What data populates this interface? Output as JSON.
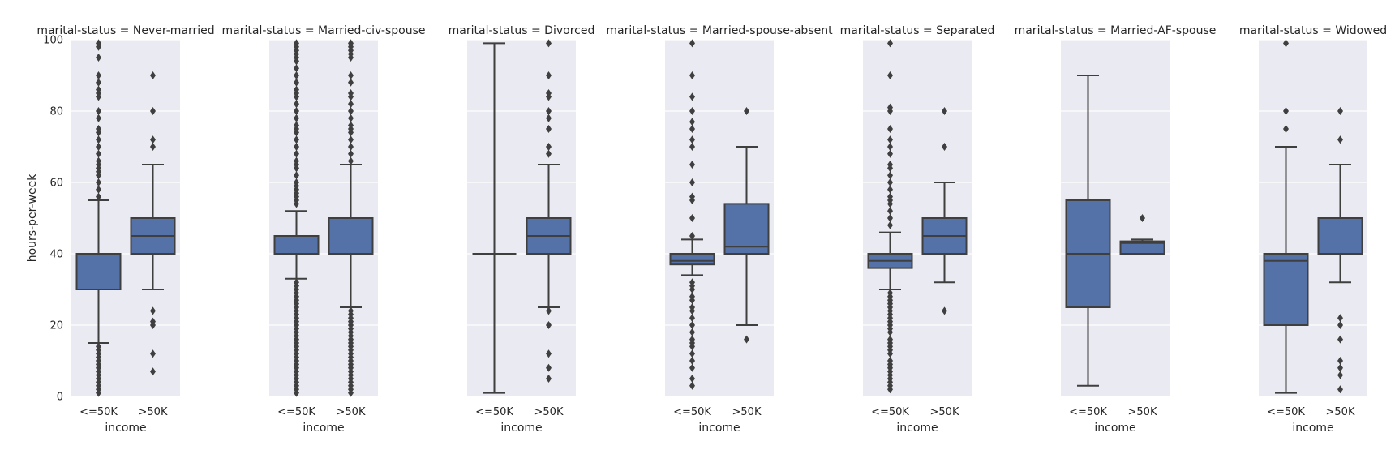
{
  "chart_data": {
    "type": "box",
    "facet_label": "marital-status = ",
    "xlabel": "income",
    "ylabel": "hours-per-week",
    "ylim": [
      0,
      100
    ],
    "yticks": [
      0,
      20,
      40,
      60,
      80,
      100
    ],
    "categories": [
      "<=50K",
      ">50K"
    ],
    "box_color": "#5572a8",
    "panels": [
      {
        "title": "marital-status =  Never-married",
        "boxes": [
          {
            "category": "<=50K",
            "whislo": 15,
            "q1": 30,
            "med": 40,
            "q3": 40,
            "whishi": 55,
            "fliers": [
              1,
              2,
              3,
              4,
              5,
              6,
              7,
              8,
              9,
              10,
              11,
              12,
              13,
              14,
              56,
              58,
              60,
              62,
              63,
              64,
              65,
              66,
              68,
              70,
              72,
              74,
              75,
              78,
              80,
              84,
              85,
              86,
              88,
              90,
              95,
              98,
              99
            ]
          },
          {
            "category": ">50K",
            "whislo": 30,
            "q1": 40,
            "med": 45,
            "q3": 50,
            "whishi": 65,
            "fliers": [
              7,
              12,
              20,
              21,
              24,
              70,
              72,
              80,
              90
            ]
          }
        ]
      },
      {
        "title": "marital-status =  Married-civ-spouse",
        "boxes": [
          {
            "category": "<=50K",
            "whislo": 33,
            "q1": 40,
            "med": 40,
            "q3": 45,
            "whishi": 52,
            "fliers": [
              1,
              2,
              3,
              4,
              5,
              6,
              7,
              8,
              9,
              10,
              11,
              12,
              13,
              14,
              15,
              16,
              17,
              18,
              19,
              20,
              21,
              22,
              23,
              24,
              25,
              26,
              27,
              28,
              29,
              30,
              31,
              32,
              54,
              55,
              56,
              57,
              58,
              59,
              60,
              62,
              64,
              65,
              66,
              68,
              70,
              72,
              74,
              75,
              76,
              78,
              80,
              82,
              84,
              85,
              86,
              88,
              90,
              92,
              94,
              95,
              96,
              97,
              98,
              99
            ]
          },
          {
            "category": ">50K",
            "whislo": 25,
            "q1": 40,
            "med": 40,
            "q3": 50,
            "whishi": 65,
            "fliers": [
              1,
              2,
              3,
              4,
              5,
              6,
              7,
              8,
              9,
              10,
              11,
              12,
              13,
              14,
              15,
              16,
              17,
              18,
              19,
              20,
              21,
              22,
              23,
              24,
              66,
              68,
              70,
              72,
              74,
              75,
              76,
              78,
              80,
              82,
              84,
              85,
              88,
              90,
              95,
              96,
              97,
              98,
              99
            ]
          }
        ]
      },
      {
        "title": "marital-status =  Divorced",
        "boxes": [
          {
            "category": "<=50K",
            "whislo": 1,
            "q1": 40,
            "med": 40,
            "q3": 40,
            "whishi": 99,
            "fliers": []
          },
          {
            "category": ">50K",
            "whislo": 25,
            "q1": 40,
            "med": 45,
            "q3": 50,
            "whishi": 65,
            "fliers": [
              5,
              8,
              12,
              20,
              24,
              68,
              70,
              75,
              78,
              80,
              84,
              85,
              90,
              99
            ]
          }
        ]
      },
      {
        "title": "marital-status =  Married-spouse-absent",
        "boxes": [
          {
            "category": "<=50K",
            "whislo": 34,
            "q1": 37,
            "med": 38,
            "q3": 40,
            "whishi": 44,
            "fliers": [
              3,
              5,
              8,
              10,
              12,
              14,
              15,
              16,
              18,
              20,
              22,
              24,
              25,
              27,
              28,
              30,
              31,
              32,
              45,
              50,
              55,
              56,
              60,
              65,
              70,
              72,
              75,
              77,
              80,
              84,
              90,
              99
            ]
          },
          {
            "category": ">50K",
            "whislo": 20,
            "q1": 40,
            "med": 42,
            "q3": 54,
            "whishi": 70,
            "fliers": [
              16,
              80
            ]
          }
        ]
      },
      {
        "title": "marital-status =  Separated",
        "boxes": [
          {
            "category": "<=50K",
            "whislo": 30,
            "q1": 36,
            "med": 38,
            "q3": 40,
            "whishi": 46,
            "fliers": [
              2,
              3,
              4,
              5,
              6,
              7,
              8,
              9,
              10,
              12,
              13,
              14,
              15,
              16,
              18,
              19,
              20,
              21,
              22,
              23,
              24,
              25,
              26,
              27,
              28,
              29,
              48,
              50,
              52,
              54,
              55,
              56,
              58,
              60,
              62,
              64,
              65,
              68,
              70,
              72,
              75,
              80,
              81,
              90,
              99
            ]
          },
          {
            "category": ">50K",
            "whislo": 32,
            "q1": 40,
            "med": 45,
            "q3": 50,
            "whishi": 60,
            "fliers": [
              24,
              70,
              80
            ]
          }
        ]
      },
      {
        "title": "marital-status =  Married-AF-spouse",
        "boxes": [
          {
            "category": "<=50K",
            "whislo": 3,
            "q1": 25,
            "med": 40,
            "q3": 55,
            "whishi": 90,
            "fliers": []
          },
          {
            "category": ">50K",
            "whislo": 40,
            "q1": 40,
            "med": 43,
            "q3": 43.5,
            "whishi": 44,
            "fliers": [
              50
            ]
          }
        ]
      },
      {
        "title": "marital-status =  Widowed",
        "boxes": [
          {
            "category": "<=50K",
            "whislo": 1,
            "q1": 20,
            "med": 38,
            "q3": 40,
            "whishi": 70,
            "fliers": [
              75,
              80,
              99
            ]
          },
          {
            "category": ">50K",
            "whislo": 32,
            "q1": 40,
            "med": 40,
            "q3": 50,
            "whishi": 65,
            "fliers": [
              2,
              6,
              8,
              10,
              16,
              20,
              22,
              72,
              80
            ]
          }
        ]
      }
    ]
  }
}
